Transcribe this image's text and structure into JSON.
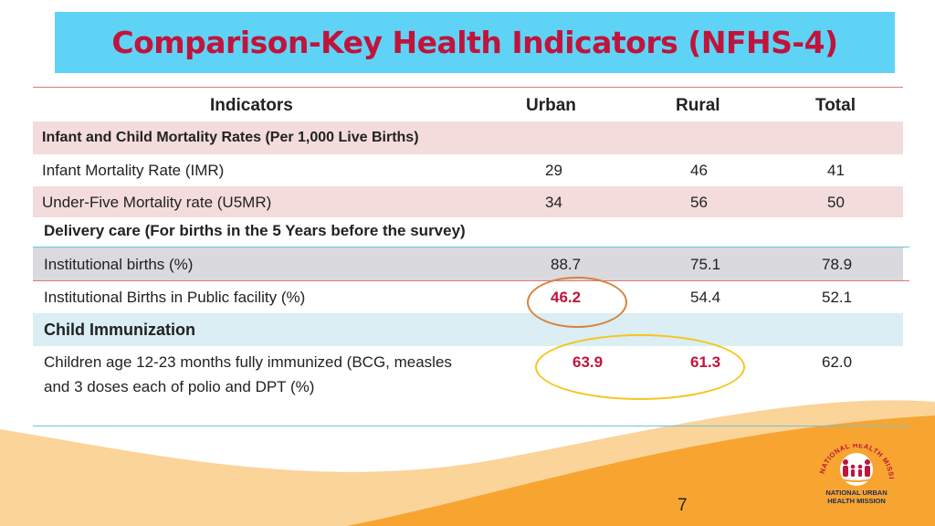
{
  "title": "Comparison-Key Health Indicators (NFHS-4)",
  "headers": {
    "indicators": "Indicators",
    "urban": "Urban",
    "rural": "Rural",
    "total": "Total"
  },
  "section1": "Infant and Child Mortality Rates (Per 1,000 Live Births)",
  "imr": {
    "label": "Infant Mortality Rate (IMR)",
    "urban": "29",
    "rural": "46",
    "total": "41"
  },
  "u5mr": {
    "label": "Under-Five Mortality rate (U5MR)",
    "urban": "34",
    "rural": "56",
    "total": "50"
  },
  "section2": "Delivery care  (For births in the 5 Years before the survey)",
  "inst": {
    "label": "Institutional births (%)",
    "urban": "88.7",
    "rural": "75.1",
    "total": "78.9"
  },
  "public": {
    "label": "Institutional Births in Public facility (%)",
    "urban": "46.2",
    "rural": "54.4",
    "total": "52.1"
  },
  "section3": "Child Immunization",
  "immun": {
    "label_line1": "Children age 12-23 months fully immunized (BCG, measles",
    "label_line2": "and 3 doses each of polio and DPT (%)",
    "urban": "63.9",
    "rural": "61.3",
    "total": "62.0"
  },
  "page_number": "7",
  "logo": {
    "arc_text": "NATIONAL HEALTH MISSION",
    "line1": "NATIONAL URBAN",
    "line2": "HEALTH MISSION"
  },
  "colors": {
    "title_bg": "#5fd3f5",
    "title_text": "#c0143c",
    "band_pink": "#f4dcdc",
    "band_gray": "#d9d9de",
    "band_blue": "#daeef3",
    "highlight_red": "#c0143c",
    "circle_orange": "#d8823c",
    "circle_yellow": "#f5c518",
    "wave_orange": "#f7a530"
  }
}
